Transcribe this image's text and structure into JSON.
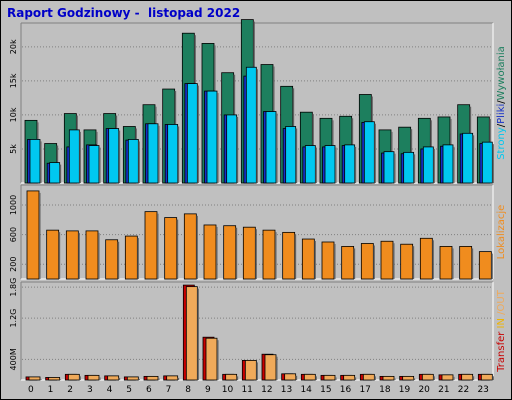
{
  "title": "Raport Godzinowy -  listopad 2022",
  "colors": {
    "background": "#c0c0c0",
    "plot": "#c0c0c0",
    "title": "#0000c8",
    "hits": "#1d7f5e",
    "files": "#1530c8",
    "pages": "#00c8f0",
    "visits": "#f08c1e",
    "kbin": "#c80000",
    "kbout": "#f0aa5a",
    "in_label": "#f0b400"
  },
  "chart_data": [
    {
      "type": "bar",
      "id": "traffic",
      "categories": [
        "0",
        "1",
        "2",
        "3",
        "4",
        "5",
        "6",
        "7",
        "8",
        "9",
        "10",
        "11",
        "12",
        "13",
        "14",
        "15",
        "16",
        "17",
        "18",
        "19",
        "20",
        "21",
        "22",
        "23"
      ],
      "yticks": [
        "5k",
        "10k",
        "15k",
        "20k"
      ],
      "ylim": [
        0,
        23500
      ],
      "ylabel_parts": [
        {
          "text": "Strony",
          "color": "#00c8f0"
        },
        {
          "text": "/",
          "color": "#000000"
        },
        {
          "text": "Pliki",
          "color": "#1530c8"
        },
        {
          "text": "/",
          "color": "#000000"
        },
        {
          "text": "Wywołania",
          "color": "#1d7f5e"
        }
      ],
      "series": [
        {
          "name": "Wywołania",
          "values": [
            9200,
            5800,
            10200,
            7800,
            10200,
            8300,
            11500,
            13800,
            22000,
            20500,
            16200,
            24000,
            17400,
            14200,
            10400,
            9500,
            9800,
            13000,
            7800,
            8200,
            9500,
            9700,
            11500,
            9700
          ]
        },
        {
          "name": "Pliki",
          "values": [
            6400,
            2900,
            5300,
            5600,
            8000,
            6300,
            8700,
            8600,
            14600,
            13500,
            10000,
            15700,
            10500,
            8000,
            5300,
            5300,
            5500,
            8900,
            4400,
            4300,
            5000,
            5400,
            7200,
            5800
          ]
        },
        {
          "name": "Strony",
          "values": [
            6400,
            3000,
            7800,
            5500,
            8000,
            6400,
            8700,
            8600,
            14600,
            13500,
            10000,
            17000,
            10500,
            8300,
            5500,
            5500,
            5600,
            9000,
            4600,
            4500,
            5300,
            5600,
            7300,
            6000
          ]
        }
      ]
    },
    {
      "type": "bar",
      "id": "visits",
      "categories": [
        "0",
        "1",
        "2",
        "3",
        "4",
        "5",
        "6",
        "7",
        "8",
        "9",
        "10",
        "11",
        "12",
        "13",
        "14",
        "15",
        "16",
        "17",
        "18",
        "19",
        "20",
        "21",
        "22",
        "23"
      ],
      "yticks": [
        "200",
        "600",
        "1000"
      ],
      "ylim": [
        0,
        1270
      ],
      "ylabel_parts": [
        {
          "text": "Lokalizacje",
          "color": "#f08c1e"
        }
      ],
      "series": [
        {
          "name": "Lokalizacje",
          "values": [
            1190,
            660,
            650,
            650,
            530,
            580,
            910,
            830,
            880,
            730,
            720,
            700,
            660,
            630,
            540,
            500,
            440,
            480,
            510,
            470,
            550,
            440,
            440,
            370
          ]
        }
      ]
    },
    {
      "type": "bar",
      "id": "transfer",
      "categories": [
        "0",
        "1",
        "2",
        "3",
        "4",
        "5",
        "6",
        "7",
        "8",
        "9",
        "10",
        "11",
        "12",
        "13",
        "14",
        "15",
        "16",
        "17",
        "18",
        "19",
        "20",
        "21",
        "22",
        "23"
      ],
      "yticks": [
        "400M",
        "1.2G",
        "1.8G"
      ],
      "ylim": [
        0,
        1900
      ],
      "ylabel_parts": [
        {
          "text": "Transfer",
          "color": "#c80000"
        },
        {
          "text": " IN",
          "color": "#f0b400"
        },
        {
          "text": " /OUT",
          "color": "#f0aa5a"
        }
      ],
      "series": [
        {
          "name": "IN",
          "values": [
            60,
            50,
            110,
            90,
            80,
            60,
            70,
            80,
            1840,
            830,
            110,
            380,
            500,
            120,
            110,
            90,
            90,
            110,
            70,
            70,
            110,
            100,
            110,
            110
          ]
        },
        {
          "name": "OUT",
          "values": [
            60,
            50,
            110,
            90,
            80,
            60,
            70,
            80,
            1810,
            810,
            110,
            380,
            490,
            120,
            110,
            90,
            90,
            110,
            70,
            70,
            110,
            100,
            110,
            110
          ]
        }
      ]
    }
  ]
}
